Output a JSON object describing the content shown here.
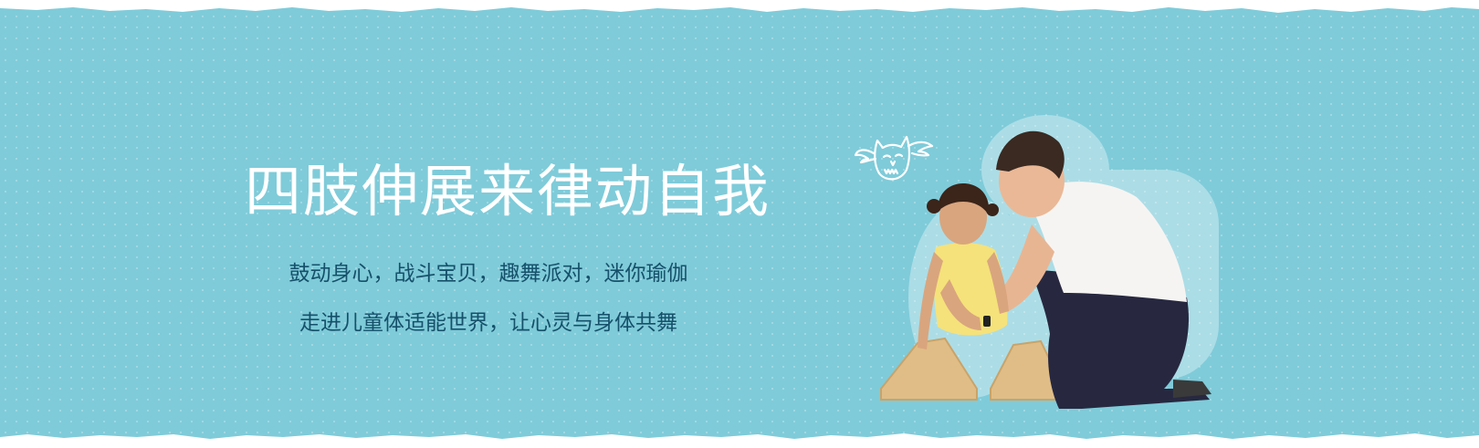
{
  "banner": {
    "headline": "四肢伸展来律动自我",
    "subline_1": "鼓动身心，战斗宝贝，趣舞派对，迷你瑜伽",
    "subline_2": "走进儿童体适能世界，让心灵与身体共舞"
  },
  "colors": {
    "background": "#7fcbd9",
    "headline": "#ffffff",
    "subline": "#16506a",
    "paper_edge": "#ffffff"
  },
  "icons": {
    "doodle": "owl-doodle-icon"
  }
}
